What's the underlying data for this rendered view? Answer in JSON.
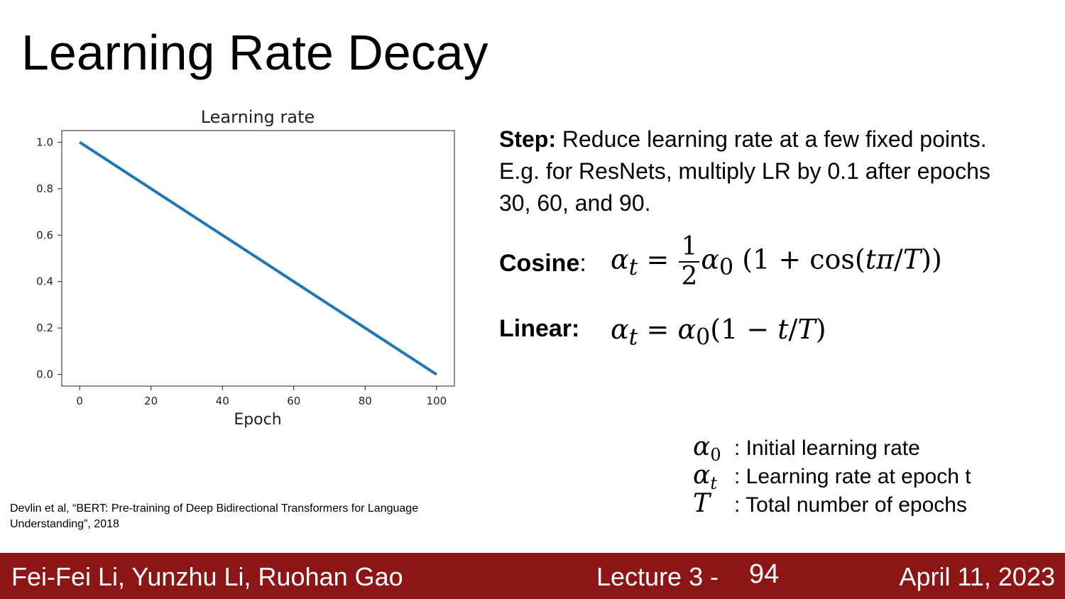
{
  "slide": {
    "title": "Learning Rate Decay",
    "step_label": "Step:",
    "step_text": " Reduce learning rate at a few fixed points. E.g. for ResNets, multiply LR by 0.1 after epochs 30, 60, and 90.",
    "cosine_label": "Cosine",
    "cosine_colon": ":",
    "linear_label": "Linear:",
    "cosine_formula": {
      "lhs": "α",
      "lhs_sub": "t",
      "eq": "=",
      "num": "1",
      "den": "2",
      "a0": "α",
      "a0_sub": "0",
      "rhs_a": "(1 + cos(",
      "rhs_t": "tπ",
      "rhs_slash": "/",
      "rhs_T": "T",
      "rhs_end": "))"
    },
    "linear_formula": {
      "lhs": "α",
      "lhs_sub": "t",
      "eq": "=",
      "a0": "α",
      "a0_sub": "0",
      "rhs_a": "(1 − ",
      "rhs_t": "t",
      "rhs_slash": "/",
      "rhs_T": "T",
      "rhs_end": ")"
    },
    "legend": [
      {
        "symbol": "α",
        "sub": "0",
        "text": ": Initial learning rate"
      },
      {
        "symbol": "α",
        "sub": "t",
        "text": ": Learning rate at epoch t"
      },
      {
        "symbol": "T",
        "sub": "",
        "text": ": Total number of epochs"
      }
    ],
    "citation": "Devlin et al, “BERT: Pre-training of Deep Bidirectional Transformers for Language Understanding”, 2018"
  },
  "footer": {
    "authors": "Fei-Fei Li, Yunzhu Li, Ruohan Gao",
    "lecture": "Lecture 3 -",
    "page": "94",
    "date": "April 11, 2023",
    "color": "#8c1515"
  },
  "chart_data": {
    "type": "line",
    "title": "Learning rate",
    "xlabel": "Epoch",
    "ylabel": "",
    "x": [
      0,
      100
    ],
    "y": [
      1.0,
      0.0
    ],
    "series": [
      {
        "name": "learning rate",
        "x": [
          0,
          100
        ],
        "values": [
          1.0,
          0.0
        ],
        "color": "#1f77b4"
      }
    ],
    "xlim": [
      -5,
      105
    ],
    "ylim": [
      -0.05,
      1.05
    ],
    "xticks": [
      0,
      20,
      40,
      60,
      80,
      100
    ],
    "xtick_labels": [
      "0",
      "20",
      "40",
      "60",
      "80",
      "100"
    ],
    "yticks": [
      0.0,
      0.2,
      0.4,
      0.6,
      0.8,
      1.0
    ],
    "ytick_labels": [
      "0.0",
      "0.2",
      "0.4",
      "0.6",
      "0.8",
      "1.0"
    ],
    "grid": false
  }
}
